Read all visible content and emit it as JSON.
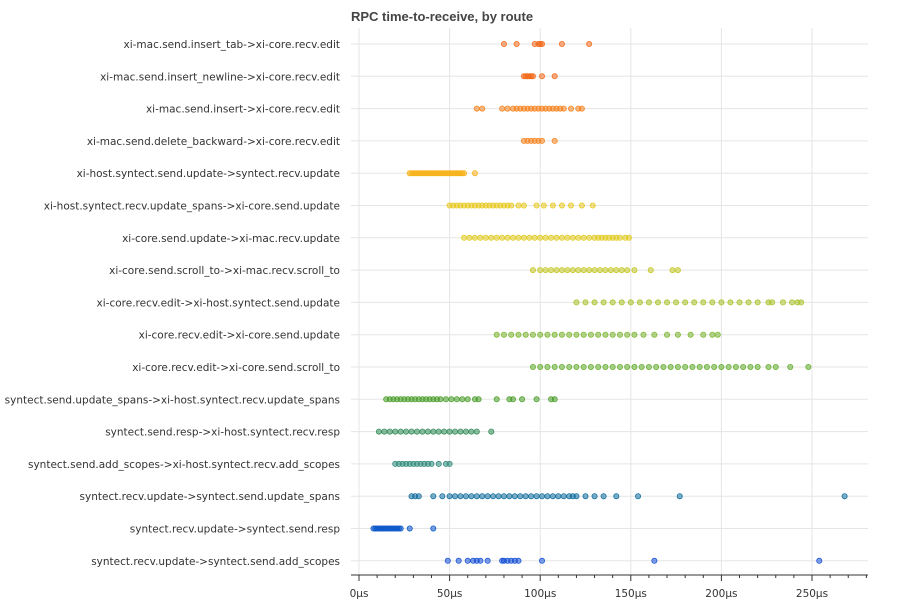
{
  "chart_data": {
    "type": "scatter",
    "title": "RPC time-to-receive, by route",
    "xlabel": "",
    "ylabel": "",
    "x_unit": "μs",
    "xlim": [
      -3,
      283
    ],
    "x_ticks": [
      0,
      50,
      100,
      150,
      200,
      250
    ],
    "x_tick_labels": [
      "0μs",
      "50μs",
      "100μs",
      "150μs",
      "200μs",
      "250μs"
    ],
    "grid": true,
    "legend": "none",
    "categories": [
      "xi-mac.send.insert_tab->xi-core.recv.edit",
      "xi-mac.send.insert_newline->xi-core.recv.edit",
      "xi-mac.send.insert->xi-core.recv.edit",
      "xi-mac.send.delete_backward->xi-core.recv.edit",
      "xi-host.syntect.send.update->syntect.recv.update",
      "xi-host.syntect.recv.update_spans->xi-core.send.update",
      "xi-core.send.update->xi-mac.recv.update",
      "xi-core.send.scroll_to->xi-mac.recv.scroll_to",
      "xi-core.recv.edit->xi-host.syntect.send.update",
      "xi-core.recv.edit->xi-core.send.update",
      "xi-core.recv.edit->xi-core.send.scroll_to",
      "syntect.send.update_spans->xi-host.syntect.recv.update_spans",
      "syntect.send.resp->xi-host.syntect.recv.resp",
      "syntect.send.add_scopes->xi-host.syntect.recv.add_scopes",
      "syntect.recv.update->syntect.send.update_spans",
      "syntect.recv.update->syntect.send.resp",
      "syntect.recv.update->syntect.send.add_scopes"
    ],
    "series": [
      {
        "color": "#f26a1b",
        "x": [
          80,
          87,
          97,
          99,
          100,
          101,
          112,
          127
        ]
      },
      {
        "color": "#f26a1b",
        "x": [
          91,
          92,
          93,
          94,
          95,
          96,
          101,
          108
        ]
      },
      {
        "color": "#f5831f",
        "x": [
          65,
          68,
          79,
          82,
          85,
          87,
          89,
          91,
          93,
          95,
          97,
          99,
          101,
          103,
          105,
          107,
          109,
          111,
          113,
          117,
          121,
          123
        ]
      },
      {
        "color": "#f5831f",
        "x": [
          91,
          93,
          95,
          97,
          99,
          101,
          108
        ]
      },
      {
        "color": "#f7b21a",
        "x": [
          28,
          29,
          30,
          31,
          32,
          33,
          34,
          35,
          36,
          37,
          38,
          39,
          40,
          41,
          42,
          43,
          44,
          45,
          46,
          47,
          48,
          49,
          50,
          51,
          52,
          53,
          54,
          55,
          56,
          57,
          58,
          64
        ]
      },
      {
        "color": "#e8c920",
        "x": [
          50,
          52,
          54,
          56,
          58,
          60,
          62,
          64,
          66,
          68,
          70,
          72,
          74,
          76,
          78,
          80,
          82,
          84,
          88,
          91,
          98,
          102,
          107,
          112,
          117,
          123,
          129
        ]
      },
      {
        "color": "#e2cb1f",
        "x": [
          58,
          61,
          64,
          67,
          70,
          73,
          76,
          79,
          82,
          85,
          88,
          91,
          94,
          97,
          100,
          103,
          106,
          109,
          112,
          115,
          118,
          121,
          124,
          127,
          130,
          132,
          134,
          136,
          138,
          140,
          142,
          144,
          147,
          149
        ]
      },
      {
        "color": "#c5c725",
        "x": [
          96,
          100,
          103,
          106,
          109,
          112,
          115,
          118,
          121,
          124,
          127,
          130,
          133,
          136,
          139,
          142,
          145,
          148,
          152,
          161,
          173,
          176
        ]
      },
      {
        "color": "#a9c22a",
        "x": [
          120,
          125,
          130,
          135,
          140,
          145,
          150,
          155,
          160,
          165,
          170,
          175,
          180,
          185,
          190,
          195,
          200,
          205,
          210,
          215,
          220,
          226,
          228,
          234,
          239,
          242,
          244
        ]
      },
      {
        "color": "#7ab52e",
        "x": [
          76,
          80,
          84,
          88,
          92,
          96,
          100,
          104,
          108,
          112,
          116,
          120,
          124,
          128,
          132,
          136,
          140,
          144,
          148,
          152,
          157,
          163,
          170,
          176,
          183,
          190,
          195,
          198
        ]
      },
      {
        "color": "#62ad2c",
        "x": [
          96,
          100,
          104,
          108,
          112,
          116,
          120,
          124,
          128,
          132,
          136,
          140,
          144,
          148,
          152,
          156,
          160,
          164,
          168,
          172,
          176,
          180,
          184,
          188,
          192,
          196,
          200,
          204,
          208,
          212,
          216,
          220,
          226,
          230,
          238,
          248
        ]
      },
      {
        "color": "#4a9e2a",
        "x": [
          15,
          17,
          19,
          21,
          23,
          25,
          27,
          29,
          31,
          33,
          35,
          37,
          39,
          41,
          43,
          45,
          48,
          51,
          54,
          57,
          60,
          64,
          66,
          76,
          83,
          85,
          90,
          98,
          106,
          108
        ]
      },
      {
        "color": "#2f8a55",
        "x": [
          11,
          14,
          17,
          20,
          23,
          26,
          29,
          32,
          35,
          38,
          41,
          44,
          47,
          50,
          53,
          56,
          59,
          62,
          65,
          73
        ]
      },
      {
        "color": "#2e8a7a",
        "x": [
          20,
          22,
          24,
          26,
          28,
          30,
          32,
          34,
          36,
          38,
          40,
          44,
          48,
          50
        ]
      },
      {
        "color": "#0f6e9e",
        "x": [
          29,
          31,
          33,
          41,
          46,
          50,
          53,
          56,
          59,
          62,
          65,
          68,
          71,
          74,
          77,
          80,
          83,
          86,
          89,
          92,
          95,
          98,
          101,
          104,
          107,
          110,
          113,
          116,
          118,
          120,
          125,
          130,
          135,
          142,
          154,
          177,
          268
        ]
      },
      {
        "color": "#0a56c9",
        "x": [
          8,
          9,
          10,
          11,
          12,
          13,
          14,
          15,
          16,
          17,
          18,
          19,
          20,
          21,
          22,
          23,
          28,
          41
        ]
      },
      {
        "color": "#1550d6",
        "x": [
          49,
          55,
          60,
          63,
          65,
          67,
          71,
          79,
          80,
          82,
          84,
          86,
          88,
          101,
          163,
          254
        ]
      }
    ]
  }
}
